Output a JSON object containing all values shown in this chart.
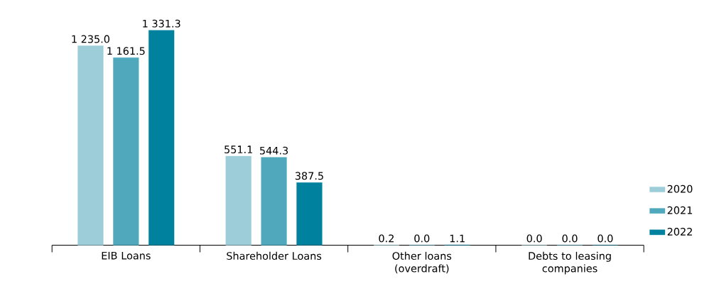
{
  "chart_data": {
    "type": "bar",
    "categories": [
      "EIB Loans",
      "Shareholder Loans",
      "Other loans (overdraft)",
      "Debts to leasing companies"
    ],
    "series": [
      {
        "name": "2020",
        "color": "#9ccdd8",
        "values": [
          1235.0,
          551.1,
          0.2,
          0.0
        ],
        "value_labels": [
          "1 235.0",
          "551.1",
          "0.2",
          "0.0"
        ]
      },
      {
        "name": "2021",
        "color": "#4fa8bc",
        "values": [
          1161.5,
          544.3,
          0.0,
          0.0
        ],
        "value_labels": [
          "1 161.5",
          "544.3",
          "0.0",
          "0.0"
        ]
      },
      {
        "name": "2022",
        "color": "#00829e",
        "values": [
          1331.3,
          387.5,
          1.1,
          0.0
        ],
        "value_labels": [
          "1 331.3",
          "387.5",
          "1.1",
          "0.0"
        ]
      }
    ],
    "legend": "right"
  }
}
